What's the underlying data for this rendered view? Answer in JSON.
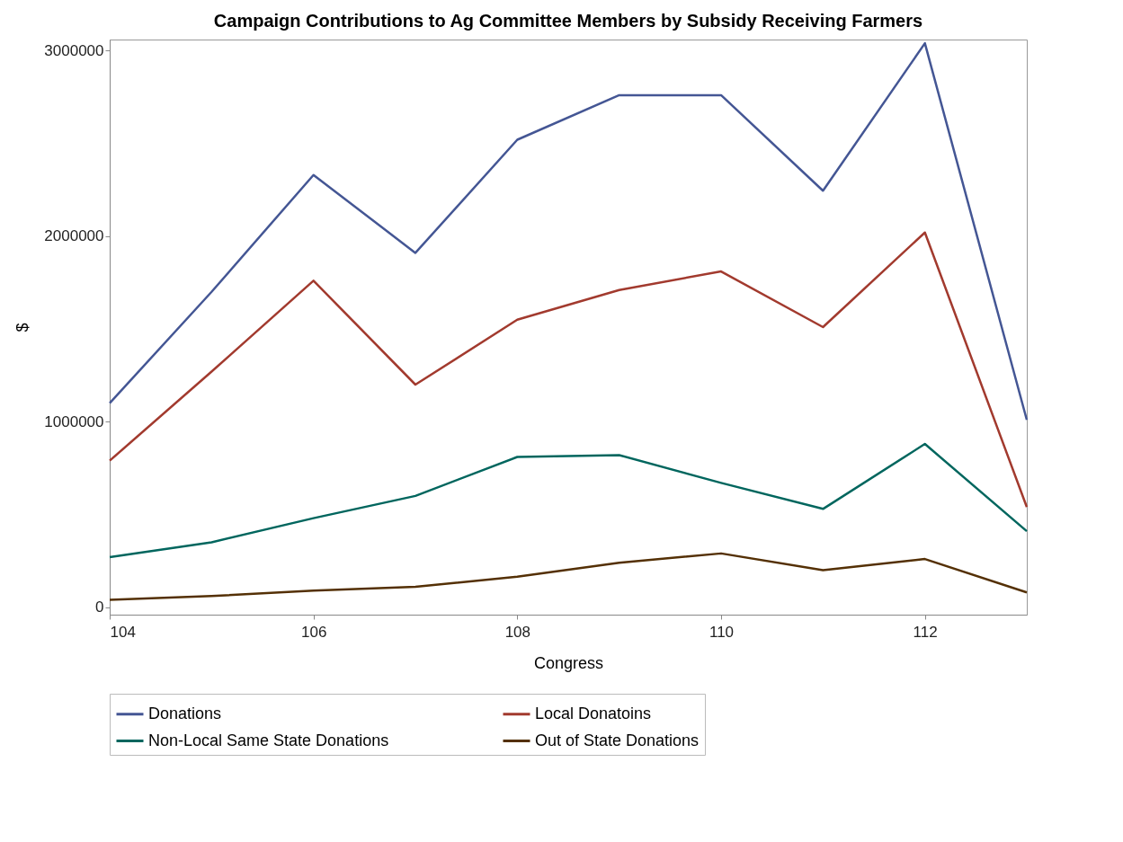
{
  "chart_data": {
    "type": "line",
    "title": "Campaign Contributions to Ag Committee Members by Subsidy Receiving Farmers",
    "xlabel": "Congress",
    "ylabel": "$",
    "x": [
      104,
      105,
      106,
      107,
      108,
      109,
      110,
      111,
      112,
      113
    ],
    "series": [
      {
        "name": "Donations",
        "color": "#445694",
        "values": [
          1100000,
          1700000,
          2330000,
          1910000,
          2520000,
          2760000,
          2760000,
          2245000,
          3040000,
          1010000
        ]
      },
      {
        "name": "Local Donatoins",
        "color": "#a23a2e",
        "values": [
          790000,
          1270000,
          1760000,
          1200000,
          1550000,
          1710000,
          1810000,
          1510000,
          2020000,
          540000
        ]
      },
      {
        "name": "Non-Local Same State Donations",
        "color": "#01665e",
        "values": [
          270000,
          350000,
          480000,
          600000,
          810000,
          820000,
          670000,
          530000,
          880000,
          410000
        ]
      },
      {
        "name": "Out of State Donations",
        "color": "#543005",
        "values": [
          40000,
          60000,
          90000,
          110000,
          165000,
          240000,
          290000,
          200000,
          260000,
          80000
        ]
      }
    ],
    "xlim": [
      104,
      113
    ],
    "xticks": [
      104,
      106,
      108,
      110,
      112
    ],
    "ylim": [
      -40000,
      3060000
    ],
    "yticks": [
      0,
      1000000,
      2000000,
      3000000
    ],
    "grid": false,
    "legend": "bottom",
    "marker": "none",
    "line_style": "solid"
  }
}
